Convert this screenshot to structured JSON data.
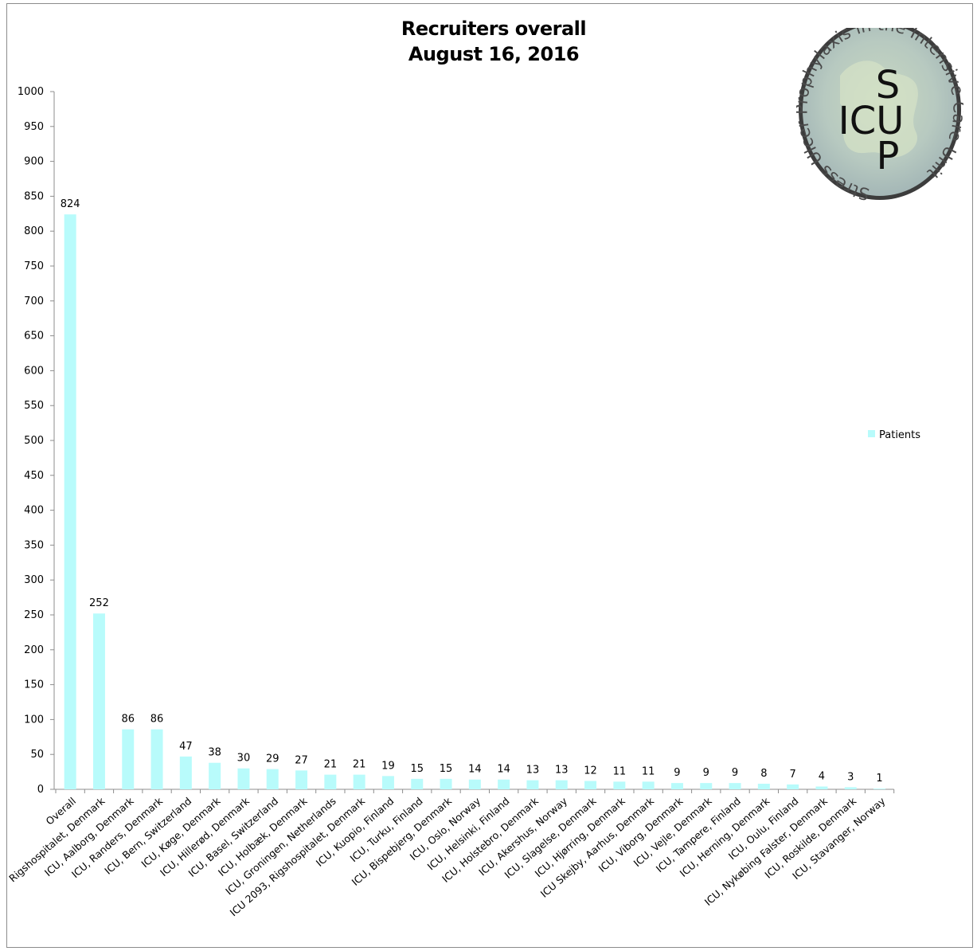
{
  "chart_data": {
    "type": "bar",
    "title": "Recruiters overall",
    "subtitle": "August 16, 2016",
    "ylim": [
      0,
      1000
    ],
    "y_ticks": [
      0,
      50,
      100,
      150,
      200,
      250,
      300,
      350,
      400,
      450,
      500,
      550,
      600,
      650,
      700,
      750,
      800,
      850,
      900,
      950,
      1000
    ],
    "grid": false,
    "legend_position": "right",
    "series": [
      {
        "name": "Patients",
        "color": "#b8fbfb",
        "values": [
          824,
          252,
          86,
          86,
          47,
          38,
          30,
          29,
          27,
          21,
          21,
          19,
          15,
          15,
          14,
          14,
          13,
          13,
          12,
          11,
          11,
          9,
          9,
          9,
          8,
          7,
          4,
          3,
          1
        ]
      }
    ],
    "categories": [
      "Overall",
      "Rigshospitalet, Denmark",
      "ICU, Aalborg, Denmark",
      "ICU, Randers, Denmark",
      "ICU, Bern, Switzerland",
      "ICU, Køge, Denmark",
      "ICU, Hillerød, Denmark",
      "ICU, Basel, Switzerland",
      "ICU, Holbæk, Denmark",
      "ICU, Groningen, Netherlands",
      "ICU 2093, Rigshospitalet, Denmark",
      "ICU, Kuopio, Finland",
      "ICU, Turku, Finland",
      "ICU, Bispebjerg, Denmark",
      "ICU, Oslo, Norway",
      "ICU, Helsinki, Finland",
      "ICU, Holstebro, Denmark",
      "ICU, Akershus, Norway",
      "ICU, Slagelse, Denmark",
      "ICU, Hjørring, Denmark",
      "ICU Skejby, Aarhus, Denmark",
      "ICU, Viborg, Denmark",
      "ICU, Vejle, Denmark",
      "ICU, Tampere, Finland",
      "ICU, Herning, Denmark",
      "ICU, Oulu, Finland",
      "ICU, Nykøbing Falster, Denmark",
      "ICU, Roskilde, Denmark",
      "ICU, Stavanger, Norway"
    ]
  },
  "logo": {
    "ring_text": "Stress Ulcer Prophylaxis in the Intensive Care Unit",
    "letters": [
      "S",
      "ICU",
      "P"
    ]
  }
}
